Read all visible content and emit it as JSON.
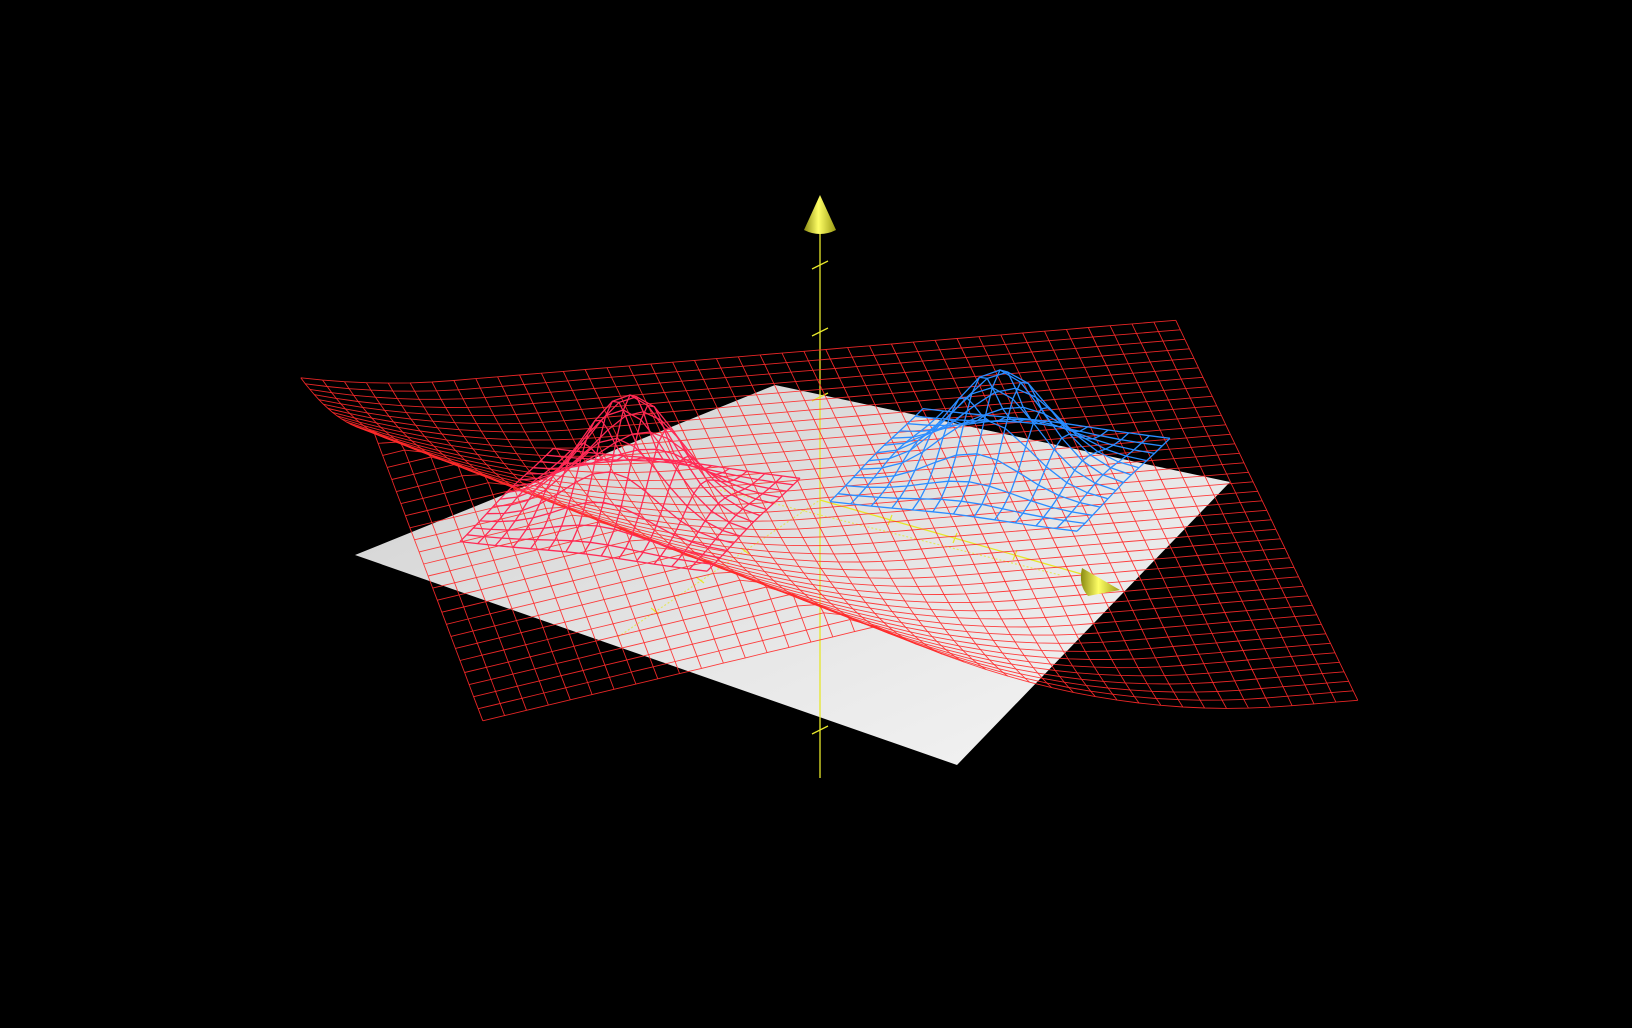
{
  "scene": {
    "background_color": "#000000",
    "axis_color": "#e6e62a",
    "plane_color": "#e8e8e8",
    "colors": {
      "sheet": "#ff2a2a",
      "bump_left": "#ff2a55",
      "bump_right": "#2a8cff"
    },
    "axes": [
      {
        "name": "z-axis",
        "arrow": "cone"
      },
      {
        "name": "x-axis",
        "arrow": "cone"
      },
      {
        "name": "y-axis",
        "arrow": "none"
      }
    ],
    "surfaces": [
      {
        "name": "red-wireframe-sheet",
        "style": "wireframe"
      },
      {
        "name": "left-gaussian-bump",
        "style": "wireframe"
      },
      {
        "name": "right-gaussian-bump",
        "style": "wireframe"
      }
    ]
  }
}
